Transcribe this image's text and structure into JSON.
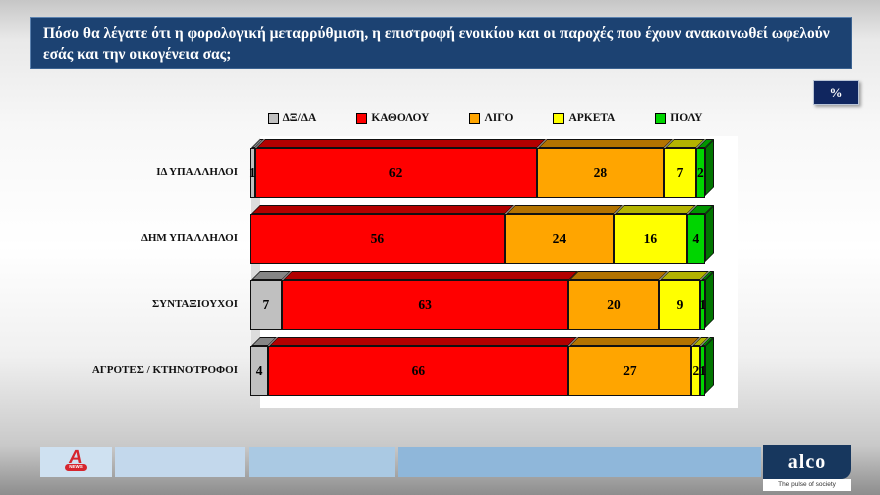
{
  "title": "Πόσο θα λέγατε ότι η φορολογική μεταρρύθμιση, η επιστροφή ενοικίου και  οι παροχές που έχουν ανακοινωθεί ωφελούν εσάς  και την οικογένεια σας;",
  "percent_badge": "%",
  "chart_data": {
    "type": "bar",
    "subtype": "stacked-horizontal-3d",
    "title": "",
    "xlabel": "",
    "ylabel": "",
    "xlim": [
      0,
      100
    ],
    "unit": "%",
    "grid": false,
    "legend_position": "top",
    "value_labels": true,
    "categories": [
      "ΙΔ ΥΠΑΛΛΗΛΟΙ",
      "ΔΗΜ ΥΠΑΛΛΗΛΟΙ",
      "ΣΥΝΤΑΞΙΟΥΧΟΙ",
      "ΑΓΡΟΤΕΣ / ΚΤΗΝΟΤΡΟΦΟΙ"
    ],
    "series": [
      {
        "name": "ΔΞ/ΔΑ",
        "color": "#C0C0C0",
        "values": [
          1,
          0,
          7,
          4
        ]
      },
      {
        "name": "ΚΑΘΟΛΟΥ",
        "color": "#FF0000",
        "values": [
          62,
          56,
          63,
          66
        ]
      },
      {
        "name": "ΛΙΓΟ",
        "color": "#FFA500",
        "values": [
          28,
          24,
          20,
          27
        ]
      },
      {
        "name": "ΑΡΚΕΤΑ",
        "color": "#FFFF00",
        "values": [
          7,
          16,
          9,
          2
        ]
      },
      {
        "name": "ΠΟΛΥ",
        "color": "#00D500",
        "values": [
          2,
          4,
          1,
          1
        ]
      }
    ]
  },
  "footer": {
    "alpha_logo": {
      "letter": "A",
      "banner": "NEWS"
    },
    "alco_logo": {
      "name": "alco",
      "tagline": "The pulse of society"
    }
  },
  "colors": {
    "title_bar_bg": "#1C4272",
    "badge_bg": "#10265F",
    "alpha_red": "#D6252E",
    "alco_navy": "#17375E",
    "footer_strip_1": "#CFE1F1",
    "footer_strip_2": "#C3D8EC",
    "footer_strip_3": "#AAC9E3",
    "footer_strip_4": "#8FB7DA",
    "plot_bg": "#FFFFFF"
  }
}
